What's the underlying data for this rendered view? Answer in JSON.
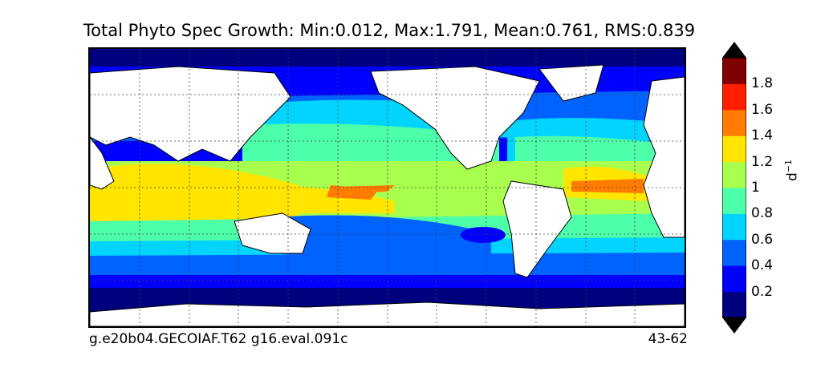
{
  "title": "Total Phyto Spec Growth: Min:0.012, Max:1.791, Mean:0.761, RMS:0.839",
  "caption_left": "g.e20b04.GECOIAF.T62 g16.eval.091c",
  "caption_right": "43-62",
  "colorbar": {
    "label_base": "d",
    "label_exp": "−1",
    "ticks": [
      "0.2",
      "0.4",
      "0.6",
      "0.8",
      "1",
      "1.2",
      "1.4",
      "1.6",
      "1.8"
    ],
    "levels": [
      0,
      0.2,
      0.4,
      0.6,
      0.8,
      1.0,
      1.2,
      1.4,
      1.6,
      1.8,
      2.0
    ],
    "colors": [
      "#00007f",
      "#0000ff",
      "#0063ff",
      "#00d4ff",
      "#4dffa9",
      "#a9ff4d",
      "#ffe500",
      "#ff7c00",
      "#ff1e00",
      "#7f0000"
    ],
    "extend": "both",
    "extend_color": "#000000"
  },
  "map": {
    "projection": "cylindrical",
    "land_color": "#ffffff",
    "coastline_color": "#000000",
    "gridlines": "dotted"
  }
}
